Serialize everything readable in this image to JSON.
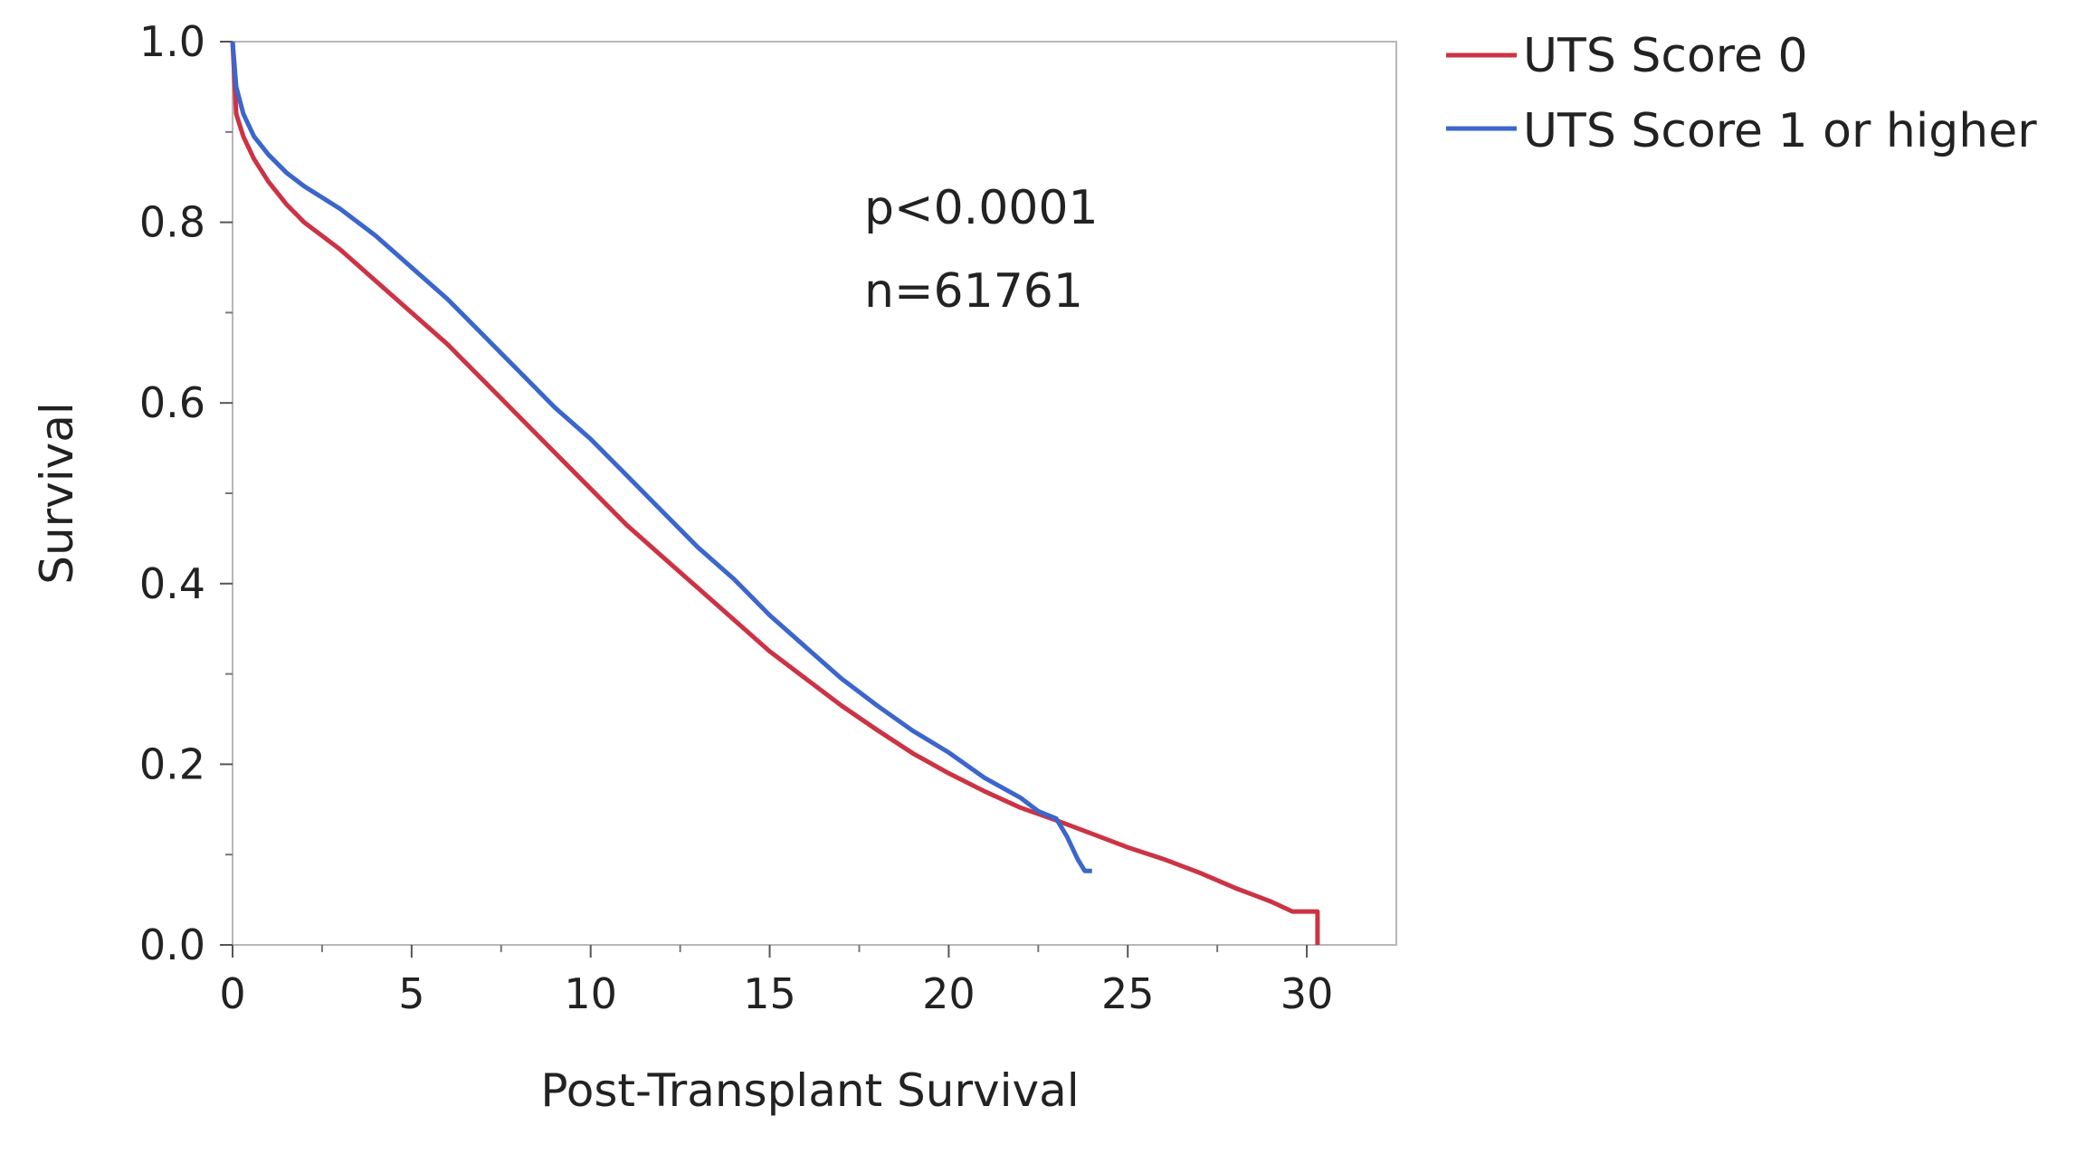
{
  "chart_data": {
    "type": "line",
    "xlabel": "Post-Transplant Survival",
    "ylabel": "Survival",
    "xlim": [
      0,
      32.5
    ],
    "ylim": [
      0,
      1.0
    ],
    "x_ticks": [
      0,
      5,
      10,
      15,
      20,
      25,
      30
    ],
    "x_tick_labels": [
      "0",
      "5",
      "10",
      "15",
      "20",
      "25",
      "30"
    ],
    "y_ticks": [
      0.0,
      0.2,
      0.4,
      0.6,
      0.8,
      1.0
    ],
    "y_tick_labels": [
      "0.0",
      "0.2",
      "0.4",
      "0.6",
      "0.8",
      "1.0"
    ],
    "grid": false,
    "legend_position": "top-right outside",
    "annotations": [
      "p<0.0001",
      "n=61761"
    ],
    "series": [
      {
        "name": "UTS Score 0",
        "color": "#cc3344",
        "x": [
          0,
          0.1,
          0.3,
          0.6,
          1,
          1.5,
          2,
          3,
          4,
          5,
          6,
          7,
          8,
          9,
          10,
          11,
          12,
          13,
          14,
          15,
          16,
          17,
          18,
          19,
          20,
          21,
          22,
          23,
          24,
          25,
          26,
          27,
          28,
          29,
          29.6,
          30.3,
          30.3
        ],
        "y": [
          1.0,
          0.92,
          0.895,
          0.87,
          0.845,
          0.82,
          0.8,
          0.77,
          0.735,
          0.7,
          0.665,
          0.625,
          0.585,
          0.545,
          0.505,
          0.465,
          0.43,
          0.395,
          0.36,
          0.325,
          0.295,
          0.265,
          0.238,
          0.212,
          0.19,
          0.17,
          0.152,
          0.138,
          0.123,
          0.108,
          0.095,
          0.08,
          0.063,
          0.048,
          0.037,
          0.037,
          0.0
        ]
      },
      {
        "name": "UTS Score 1 or higher",
        "color": "#3b66cc",
        "x": [
          0,
          0.1,
          0.3,
          0.6,
          1,
          1.5,
          2,
          3,
          4,
          5,
          6,
          7,
          8,
          9,
          10,
          11,
          12,
          13,
          14,
          15,
          16,
          17,
          18,
          19,
          20,
          21,
          22,
          22.5,
          23,
          23.3,
          23.6,
          23.8,
          24.0
        ],
        "y": [
          1.0,
          0.95,
          0.92,
          0.895,
          0.875,
          0.855,
          0.84,
          0.815,
          0.785,
          0.75,
          0.715,
          0.675,
          0.635,
          0.595,
          0.56,
          0.52,
          0.48,
          0.44,
          0.405,
          0.365,
          0.33,
          0.295,
          0.265,
          0.237,
          0.213,
          0.185,
          0.163,
          0.148,
          0.14,
          0.12,
          0.095,
          0.082,
          0.082
        ]
      }
    ]
  }
}
